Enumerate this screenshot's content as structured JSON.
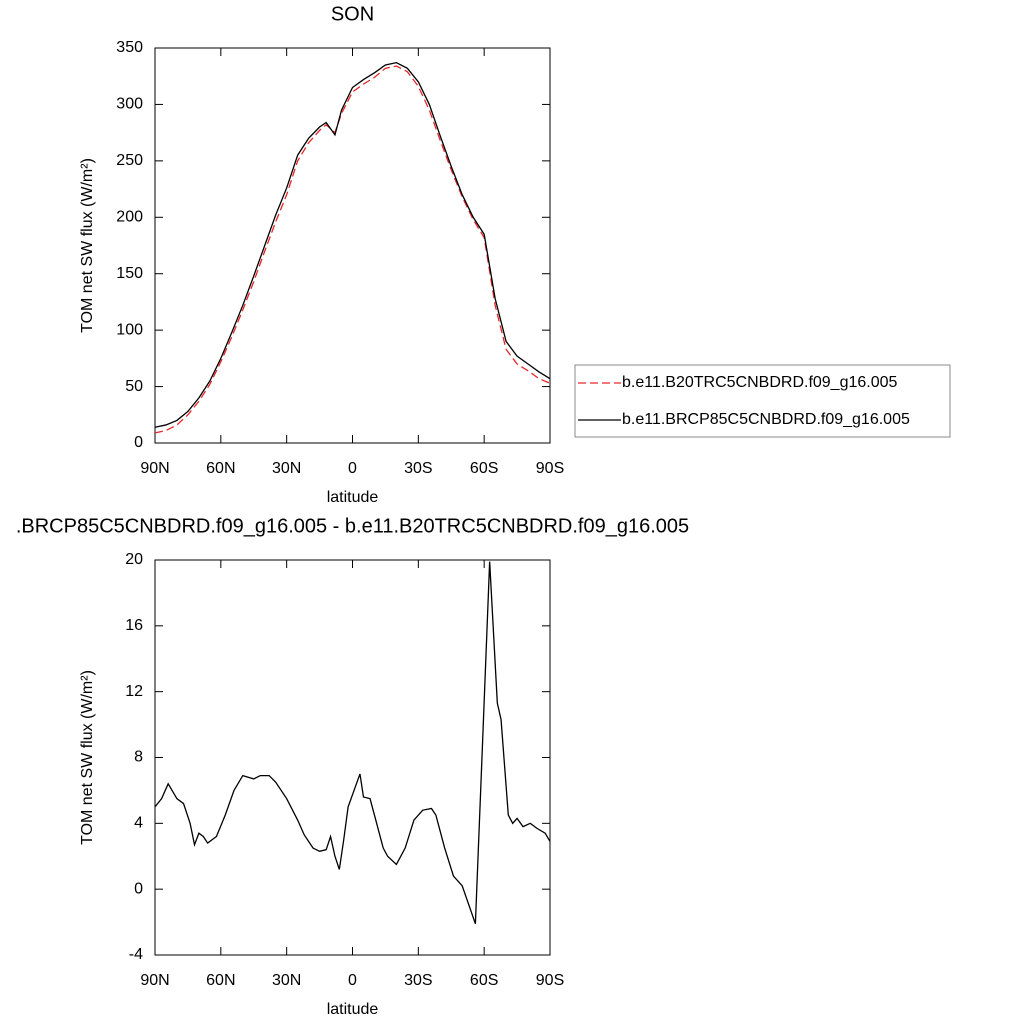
{
  "chart_data": [
    {
      "type": "line",
      "title": "SON",
      "x_label": "latitude",
      "y_label": "TOM net SW flux (W/m²)",
      "x": [
        90,
        85,
        80,
        75,
        70,
        65,
        60,
        55,
        50,
        45,
        40,
        35,
        30,
        25,
        20,
        15,
        12,
        8,
        5,
        0,
        -5,
        -10,
        -15,
        -20,
        -25,
        -30,
        -35,
        -40,
        -45,
        -50,
        -55,
        -60,
        -65,
        -70,
        -75,
        -80,
        -85,
        -90
      ],
      "series": [
        {
          "name": "b.e11.B20TRC5CNBDRD.f09_g16.005",
          "color": "#e8262a",
          "line_style": "dashed",
          "values": [
            9,
            11,
            16,
            25,
            37,
            52,
            72,
            94,
            118,
            143,
            170,
            196,
            220,
            250,
            266,
            277,
            282,
            275,
            292,
            311,
            318,
            324,
            332,
            334,
            329,
            316,
            295,
            268,
            242,
            218,
            198,
            182,
            122,
            83,
            70,
            64,
            57,
            53
          ]
        },
        {
          "name": "b.e11.BRCP85C5CNBDRD.f09_g16.005",
          "color": "#000000",
          "line_style": "solid",
          "values": [
            14,
            16,
            20,
            28,
            40,
            55,
            75,
            98,
            122,
            148,
            175,
            202,
            226,
            255,
            270,
            280,
            284,
            273,
            295,
            315,
            322,
            328,
            335,
            337,
            332,
            320,
            300,
            272,
            245,
            220,
            200,
            185,
            128,
            90,
            77,
            70,
            63,
            57
          ]
        }
      ],
      "xlim": [
        90,
        -90
      ],
      "xticks": [
        {
          "value": 90,
          "label": "90N"
        },
        {
          "value": 60,
          "label": "60N"
        },
        {
          "value": 30,
          "label": "30N"
        },
        0,
        {
          "value": -30,
          "label": "30S"
        },
        {
          "value": -60,
          "label": "60S"
        },
        {
          "value": -90,
          "label": "90S"
        }
      ],
      "ylim": [
        0,
        350
      ],
      "yticks": [
        0,
        50,
        100,
        150,
        200,
        250,
        300,
        350
      ],
      "legend": "outside-right"
    },
    {
      "type": "line",
      "title": ".BRCP85C5CNBDRD.f09_g16.005 - b.e11.B20TRC5CNBDRD.f09_g16.005",
      "x_label": "latitude",
      "y_label": "TOM net SW flux (W/m²)",
      "x": [
        90,
        87,
        84,
        80,
        77,
        74,
        72,
        70,
        68,
        66,
        62,
        58,
        54,
        50,
        45,
        42,
        38,
        35,
        30,
        25,
        22,
        18,
        15,
        12,
        10,
        8,
        6,
        4,
        2,
        -3.4,
        -5,
        -8,
        -11,
        -14,
        -16,
        -20,
        -24,
        -28,
        -32,
        -36,
        -38,
        -42,
        -46,
        -50,
        -56,
        -59,
        -62.5,
        -66,
        -67.7,
        -71,
        -73,
        -75,
        -77.7,
        -81,
        -84,
        -87.8,
        -90
      ],
      "values": [
        5.0,
        5.5,
        6.4,
        5.5,
        5.2,
        4.0,
        2.7,
        3.4,
        3.2,
        2.8,
        3.2,
        4.5,
        6.0,
        6.9,
        6.7,
        6.9,
        6.9,
        6.5,
        5.5,
        4.2,
        3.3,
        2.5,
        2.3,
        2.4,
        3.2,
        2.0,
        1.2,
        3.0,
        5.0,
        7.0,
        5.6,
        5.5,
        4.0,
        2.5,
        2.0,
        1.5,
        2.5,
        4.2,
        4.8,
        4.9,
        4.5,
        2.5,
        0.8,
        0.2,
        -2.1,
        8.0,
        19.9,
        11.3,
        10.3,
        4.5,
        4.0,
        4.3,
        3.8,
        4.0,
        3.7,
        3.4,
        2.9
      ],
      "color": "#000000",
      "xlim": [
        90,
        -90
      ],
      "xticks": [
        {
          "value": 90,
          "label": "90N"
        },
        {
          "value": 60,
          "label": "60N"
        },
        {
          "value": 30,
          "label": "30N"
        },
        0,
        {
          "value": -30,
          "label": "30S"
        },
        {
          "value": -60,
          "label": "60S"
        },
        {
          "value": -90,
          "label": "90S"
        }
      ],
      "ylim": [
        -4,
        20
      ],
      "yticks": [
        -4,
        0,
        4,
        8,
        12,
        16,
        20
      ]
    }
  ]
}
